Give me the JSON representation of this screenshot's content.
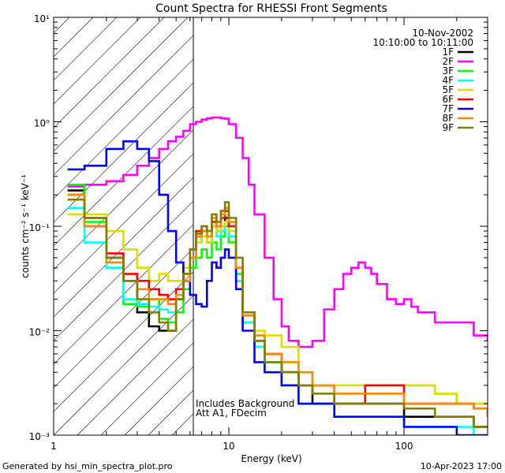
{
  "chart_data": {
    "type": "line",
    "title": "Count Spectra for RHESSI Front Segments",
    "xlabel": "Energy (keV)",
    "ylabel": "counts cm⁻² s⁻¹ keV⁻¹",
    "xscale": "log",
    "yscale": "log",
    "xlim": [
      1,
      300
    ],
    "ylim": [
      0.001,
      10
    ],
    "x_ticks": [
      1,
      10,
      100
    ],
    "x_tick_labels": [
      "1",
      "10",
      "100"
    ],
    "y_ticks": [
      0.001,
      0.01,
      0.1,
      1,
      10
    ],
    "y_tick_labels": [
      "10⁻³",
      "10⁻²",
      "10⁻¹",
      "10⁰",
      "10¹"
    ],
    "legend_position": "top-right",
    "date": "10-Nov-2002",
    "time_range": "10:10:00 to 10:11:00",
    "annotations": [
      "Includes Background",
      "Att A1, FDecim"
    ],
    "hatched_region": [
      1,
      6
    ],
    "footer_left": "Generated by hsi_min_spectra_plot.pro",
    "footer_right": "10-Apr-2023 17:00",
    "series": [
      {
        "name": "1F",
        "color": "#000000",
        "x": [
          1.2,
          1.5,
          2,
          2.5,
          3,
          3.5,
          4,
          4.5,
          5,
          5.5,
          6,
          6.5,
          7,
          7.5,
          8,
          8.5,
          9,
          9.5,
          10,
          11,
          12,
          14,
          16,
          20,
          25,
          30,
          40,
          60,
          80,
          100,
          150,
          200,
          250,
          300
        ],
        "y": [
          0.22,
          0.1,
          0.05,
          0.03,
          0.015,
          0.011,
          0.01,
          0.01,
          0.02,
          0.03,
          0.05,
          0.08,
          0.09,
          0.07,
          0.1,
          0.09,
          0.09,
          0.12,
          0.08,
          0.03,
          0.012,
          0.008,
          0.006,
          0.004,
          0.003,
          0.002,
          0.002,
          0.002,
          0.002,
          0.0015,
          0.0015,
          0.0015,
          0.0012,
          0.0012
        ]
      },
      {
        "name": "2F",
        "color": "#ff00ff",
        "x": [
          1.2,
          1.5,
          2,
          2.5,
          3,
          3.5,
          4,
          4.5,
          5,
          5.5,
          6,
          6.5,
          7,
          7.5,
          8,
          8.5,
          9,
          9.5,
          10,
          11,
          12,
          13,
          14,
          16,
          18,
          20,
          22,
          25,
          30,
          35,
          40,
          45,
          50,
          55,
          60,
          65,
          70,
          80,
          90,
          100,
          110,
          120,
          150,
          200,
          250,
          300
        ],
        "y": [
          0.24,
          0.25,
          0.27,
          0.31,
          0.38,
          0.45,
          0.55,
          0.65,
          0.72,
          0.82,
          0.95,
          1.0,
          1.05,
          1.08,
          1.1,
          1.1,
          1.08,
          1.07,
          0.95,
          0.7,
          0.45,
          0.25,
          0.13,
          0.05,
          0.02,
          0.011,
          0.008,
          0.007,
          0.008,
          0.016,
          0.025,
          0.035,
          0.04,
          0.045,
          0.04,
          0.035,
          0.028,
          0.02,
          0.018,
          0.02,
          0.017,
          0.015,
          0.012,
          0.012,
          0.009,
          0.008
        ]
      },
      {
        "name": "3F",
        "color": "#00ff00",
        "x": [
          1.2,
          1.5,
          2,
          2.5,
          3,
          3.5,
          4,
          4.5,
          5,
          5.5,
          6,
          6.5,
          7,
          7.5,
          8,
          8.5,
          9,
          9.5,
          10,
          11,
          12,
          14,
          16,
          20,
          25,
          30,
          40,
          60,
          80,
          100,
          150,
          200,
          250,
          300
        ],
        "y": [
          0.25,
          0.11,
          0.04,
          0.018,
          0.017,
          0.02,
          0.013,
          0.012,
          0.015,
          0.025,
          0.04,
          0.05,
          0.06,
          0.05,
          0.07,
          0.06,
          0.08,
          0.1,
          0.07,
          0.035,
          0.012,
          0.007,
          0.005,
          0.004,
          0.003,
          0.003,
          0.002,
          0.003,
          0.003,
          0.003,
          0.0025,
          0.002,
          0.002,
          0.002
        ]
      },
      {
        "name": "4F",
        "color": "#00ffff",
        "x": [
          1.2,
          1.5,
          2,
          2.5,
          3,
          3.5,
          4,
          4.5,
          5,
          5.5,
          6,
          6.5,
          7,
          7.5,
          8,
          8.5,
          9,
          9.5,
          10,
          11,
          12,
          14,
          16,
          20,
          25,
          30,
          40,
          60,
          80,
          100,
          150,
          200,
          250,
          300
        ],
        "y": [
          0.15,
          0.07,
          0.04,
          0.02,
          0.018,
          0.017,
          0.016,
          0.015,
          0.02,
          0.03,
          0.05,
          0.07,
          0.08,
          0.07,
          0.1,
          0.08,
          0.09,
          0.11,
          0.08,
          0.03,
          0.012,
          0.007,
          0.005,
          0.003,
          0.002,
          0.002,
          0.0015,
          0.0015,
          0.0015,
          0.0012,
          0.0012,
          0.0012,
          0.001,
          0.001
        ]
      },
      {
        "name": "5F",
        "color": "#dddd00",
        "x": [
          1.2,
          1.5,
          2,
          2.5,
          3,
          3.5,
          4,
          4.5,
          5,
          5.5,
          6,
          6.5,
          7,
          7.5,
          8,
          8.5,
          9,
          9.5,
          10,
          11,
          12,
          14,
          16,
          20,
          25,
          30,
          40,
          60,
          80,
          100,
          150,
          200,
          250,
          300
        ],
        "y": [
          0.13,
          0.13,
          0.09,
          0.06,
          0.04,
          0.03,
          0.035,
          0.03,
          0.03,
          0.04,
          0.05,
          0.07,
          0.08,
          0.07,
          0.1,
          0.09,
          0.1,
          0.11,
          0.09,
          0.04,
          0.015,
          0.01,
          0.009,
          0.007,
          0.004,
          0.003,
          0.003,
          0.003,
          0.003,
          0.003,
          0.0025,
          0.002,
          0.002,
          0.002
        ]
      },
      {
        "name": "6F",
        "color": "#ff0000",
        "x": [
          1.2,
          1.5,
          2,
          2.5,
          3,
          3.5,
          4,
          4.5,
          5,
          5.5,
          6,
          6.5,
          7,
          7.5,
          8,
          8.5,
          9,
          9.5,
          10,
          11,
          12,
          14,
          16,
          20,
          25,
          30,
          40,
          60,
          80,
          100,
          150,
          200,
          250,
          300
        ],
        "y": [
          0.2,
          0.12,
          0.055,
          0.035,
          0.03,
          0.025,
          0.022,
          0.02,
          0.025,
          0.035,
          0.06,
          0.09,
          0.1,
          0.08,
          0.11,
          0.1,
          0.12,
          0.14,
          0.1,
          0.04,
          0.014,
          0.008,
          0.006,
          0.004,
          0.003,
          0.003,
          0.002,
          0.003,
          0.003,
          0.002,
          0.002,
          0.002,
          0.0018,
          0.0015
        ]
      },
      {
        "name": "7F",
        "color": "#0000ff",
        "x": [
          1.2,
          1.5,
          2,
          2.5,
          3,
          3.5,
          4,
          4.5,
          5,
          5.5,
          6,
          6.5,
          7,
          7.5,
          8,
          8.5,
          9,
          9.5,
          10,
          11,
          12,
          14,
          16,
          20,
          25,
          30,
          40,
          60,
          80,
          100,
          150,
          200,
          250,
          300
        ],
        "y": [
          0.35,
          0.38,
          0.55,
          0.65,
          0.55,
          0.42,
          0.2,
          0.09,
          0.045,
          0.03,
          0.022,
          0.018,
          0.017,
          0.03,
          0.045,
          0.04,
          0.05,
          0.06,
          0.05,
          0.025,
          0.01,
          0.005,
          0.004,
          0.003,
          0.002,
          0.002,
          0.0015,
          0.0015,
          0.0015,
          0.0012,
          0.0012,
          0.001,
          0.001,
          0.001
        ]
      },
      {
        "name": "8F",
        "color": "#ff8800",
        "x": [
          1.2,
          1.5,
          2,
          2.5,
          3,
          3.5,
          4,
          4.5,
          5,
          5.5,
          6,
          6.5,
          7,
          7.5,
          8,
          8.5,
          9,
          9.5,
          10,
          11,
          12,
          14,
          16,
          20,
          25,
          30,
          40,
          60,
          80,
          100,
          150,
          200,
          250,
          300
        ],
        "y": [
          0.2,
          0.1,
          0.045,
          0.03,
          0.025,
          0.02,
          0.02,
          0.018,
          0.022,
          0.03,
          0.05,
          0.08,
          0.09,
          0.08,
          0.12,
          0.1,
          0.13,
          0.15,
          0.11,
          0.04,
          0.014,
          0.009,
          0.006,
          0.005,
          0.004,
          0.003,
          0.0025,
          0.0025,
          0.0025,
          0.002,
          0.002,
          0.002,
          0.0018,
          0.0015
        ]
      },
      {
        "name": "9F",
        "color": "#808000",
        "x": [
          1.2,
          1.5,
          2,
          2.5,
          3,
          3.5,
          4,
          4.5,
          5,
          5.5,
          6,
          6.5,
          7,
          7.5,
          8,
          8.5,
          9,
          9.5,
          10,
          11,
          12,
          14,
          16,
          20,
          25,
          30,
          40,
          60,
          80,
          100,
          150,
          200,
          250,
          300
        ],
        "y": [
          0.18,
          0.12,
          0.05,
          0.03,
          0.02,
          0.015,
          0.012,
          0.01,
          0.02,
          0.035,
          0.06,
          0.085,
          0.1,
          0.09,
          0.13,
          0.11,
          0.14,
          0.17,
          0.12,
          0.05,
          0.015,
          0.008,
          0.005,
          0.004,
          0.003,
          0.0025,
          0.002,
          0.002,
          0.002,
          0.0018,
          0.0015,
          0.0015,
          0.0012,
          0.0012
        ]
      }
    ]
  }
}
